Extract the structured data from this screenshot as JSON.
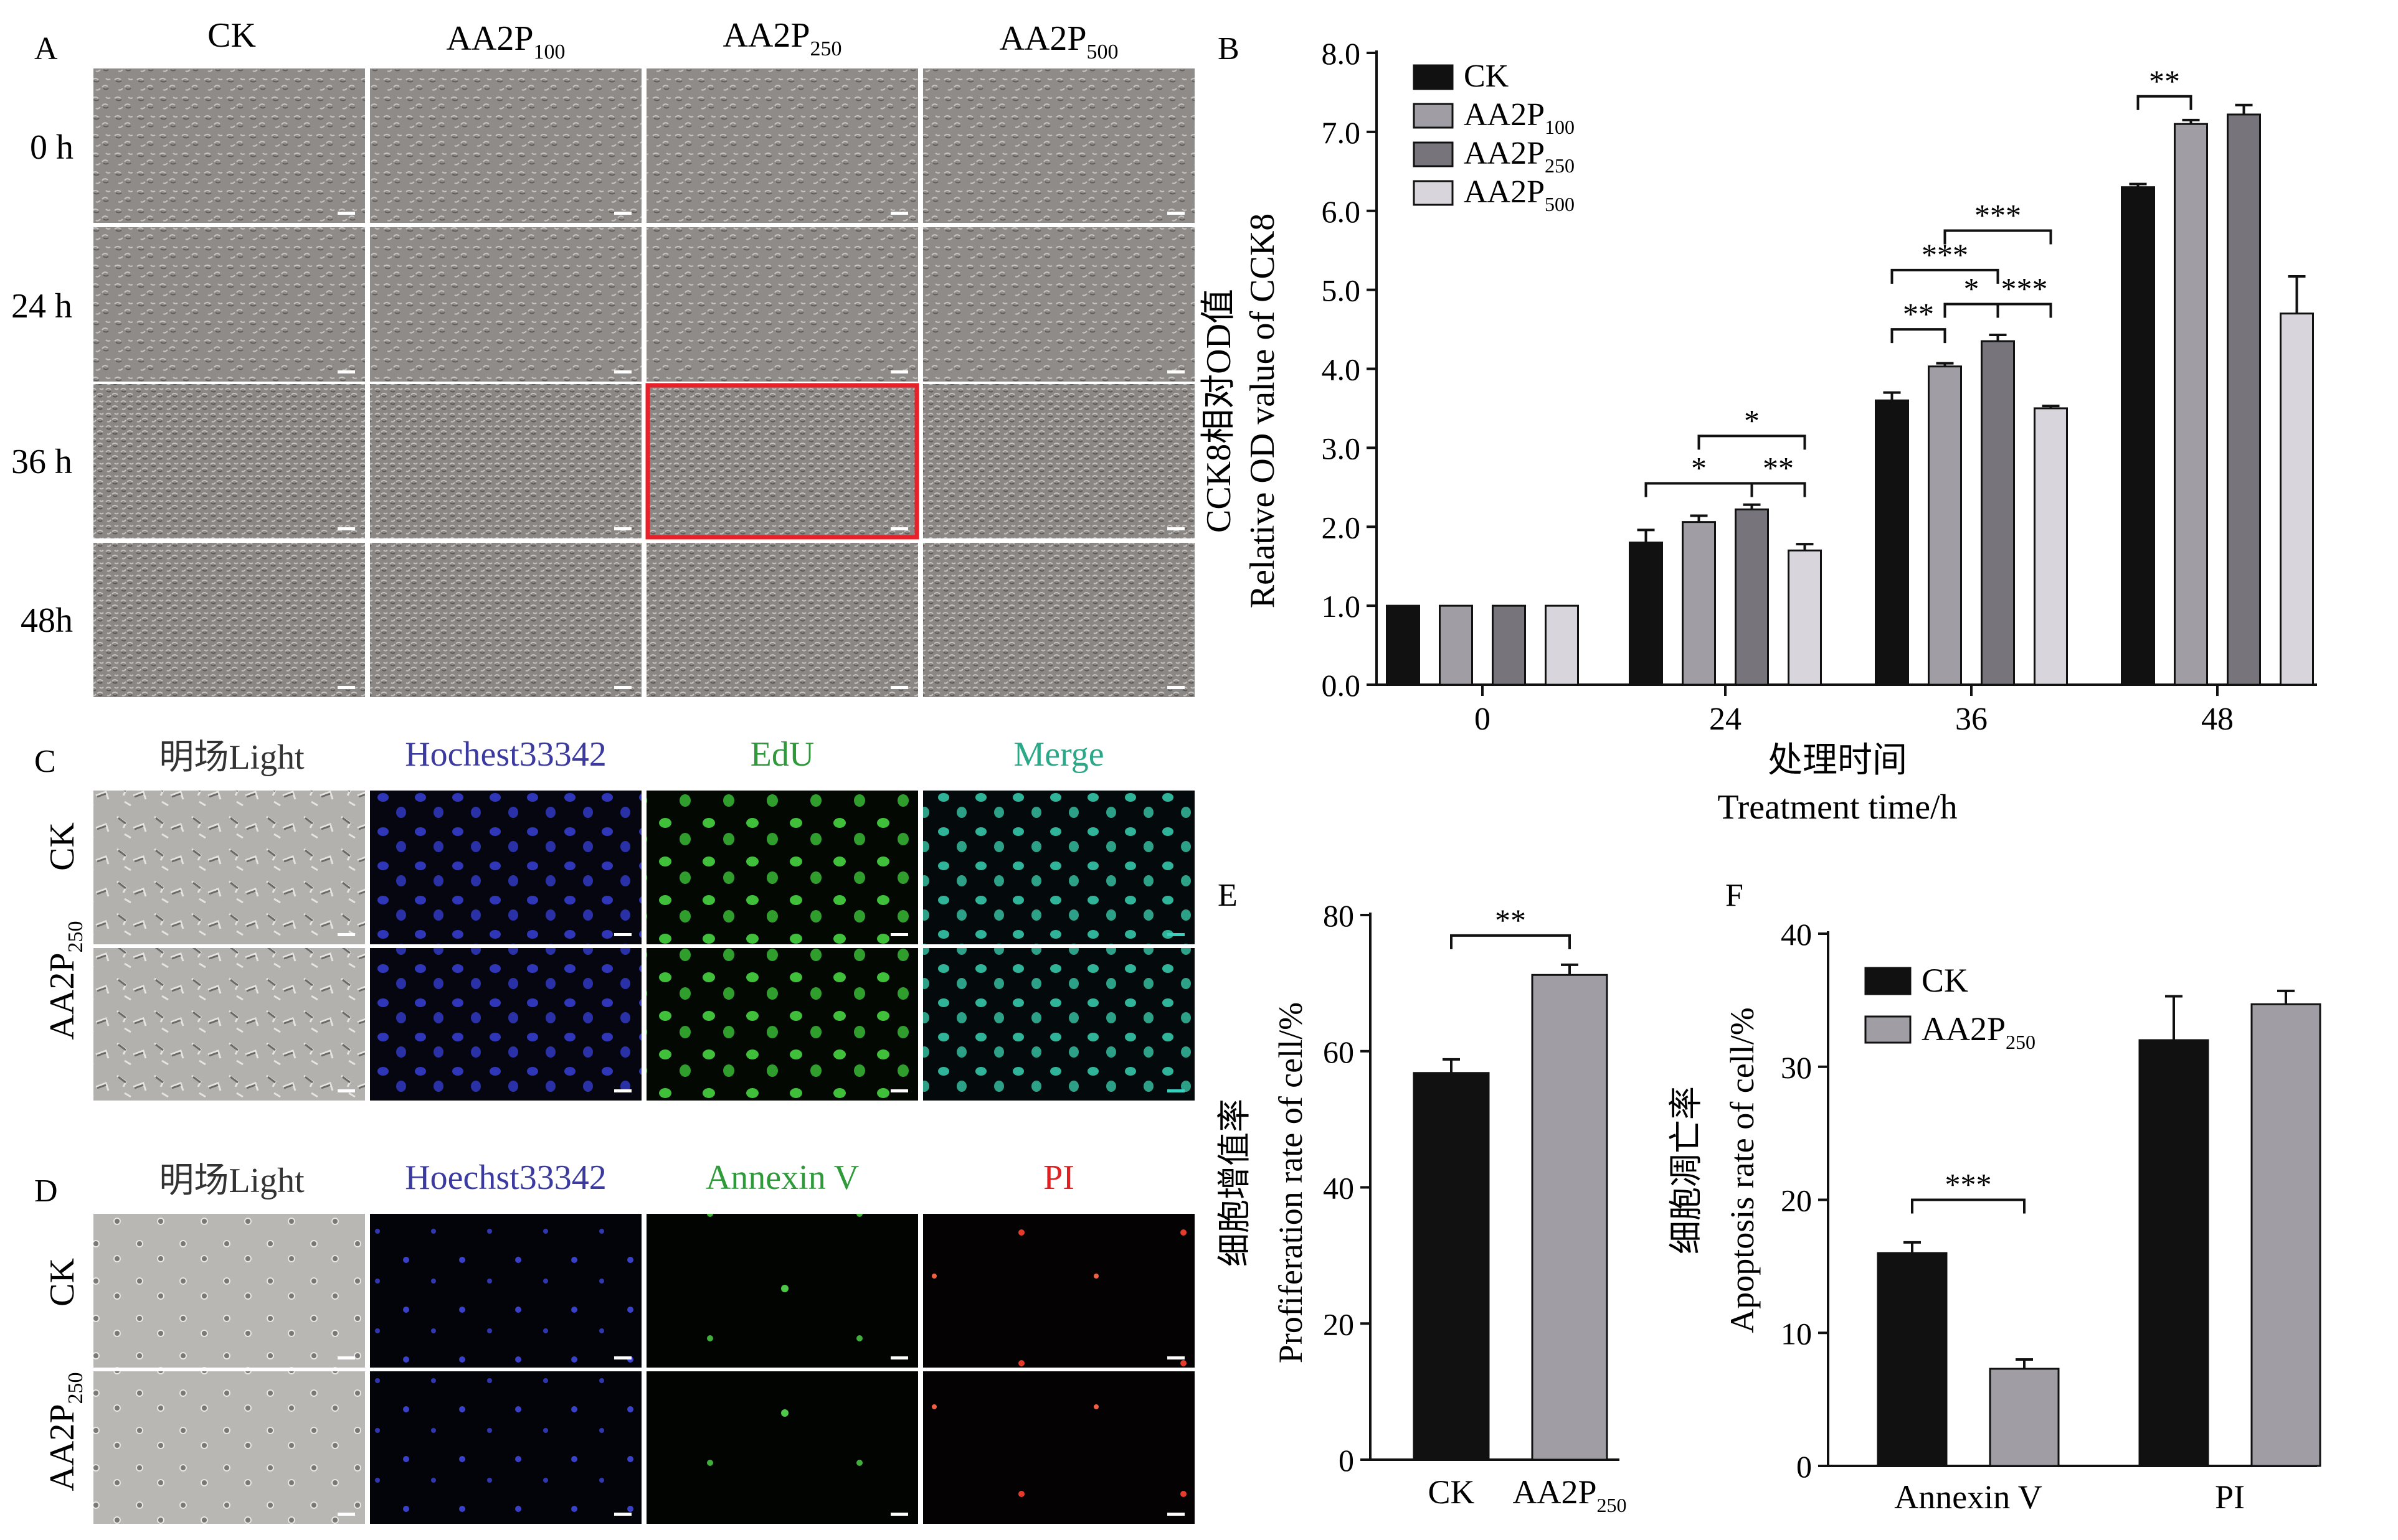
{
  "panel_a": {
    "letter": "A",
    "col_headers": [
      {
        "base": "CK",
        "sub": ""
      },
      {
        "base": "AA2P",
        "sub": "100"
      },
      {
        "base": "AA2P",
        "sub": "250"
      },
      {
        "base": "AA2P",
        "sub": "500"
      }
    ],
    "row_labels": [
      "0 h",
      "24 h",
      "36 h",
      "48h"
    ],
    "highlight": {
      "row": 2,
      "col": 2,
      "color": "#e8202a"
    }
  },
  "panel_c": {
    "letter": "C",
    "col_headers": [
      "明场Light",
      "Hochest33342",
      "EdU",
      "Merge"
    ],
    "col_colors": [
      "#333333",
      "#3a3aa0",
      "#2e9a3a",
      "#2aa888"
    ],
    "row_labels": [
      {
        "base": "CK",
        "sub": ""
      },
      {
        "base": "AA2P",
        "sub": "250"
      }
    ]
  },
  "panel_d": {
    "letter": "D",
    "col_headers": [
      "明场Light",
      "Hoechst33342",
      "Annexin V",
      "PI"
    ],
    "col_colors": [
      "#333333",
      "#3a3aa0",
      "#2e9a3a",
      "#e02020"
    ],
    "row_labels": [
      {
        "base": "CK",
        "sub": ""
      },
      {
        "base": "AA2P",
        "sub": "250"
      }
    ]
  },
  "chart_data": [
    {
      "panel": "B",
      "type": "bar",
      "ylabel_cn": "CCK8相对OD值",
      "ylabel_en": "Relative OD value of CCK8",
      "xlabel_cn": "处理时间",
      "xlabel_en": "Treatment time/h",
      "categories": [
        "0",
        "24",
        "36",
        "48"
      ],
      "ylim": [
        0,
        8
      ],
      "yticks": [
        "0.0",
        "1.0",
        "2.0",
        "3.0",
        "4.0",
        "5.0",
        "6.0",
        "7.0",
        "8.0"
      ],
      "legend_position": "top-left",
      "series": [
        {
          "name": "CK",
          "name_sub": "",
          "color": "#111111",
          "values": [
            1.0,
            1.8,
            3.6,
            6.3
          ],
          "errors": [
            0.0,
            0.16,
            0.1,
            0.04
          ]
        },
        {
          "name": "AA2P",
          "name_sub": "100",
          "color": "#a09ea4",
          "values": [
            1.0,
            2.06,
            4.03,
            7.1
          ],
          "errors": [
            0.0,
            0.08,
            0.04,
            0.05
          ]
        },
        {
          "name": "AA2P",
          "name_sub": "250",
          "color": "#77757b",
          "values": [
            1.0,
            2.22,
            4.35,
            7.22
          ],
          "errors": [
            0.0,
            0.06,
            0.08,
            0.12
          ]
        },
        {
          "name": "AA2P",
          "name_sub": "500",
          "color": "#d8d6dc",
          "values": [
            1.0,
            1.7,
            3.5,
            4.7
          ],
          "errors": [
            0.0,
            0.08,
            0.03,
            0.47
          ]
        }
      ],
      "significance": [
        {
          "group": 1,
          "from": 0,
          "to": 2,
          "label": "*",
          "y": 2.55
        },
        {
          "group": 1,
          "from": 2,
          "to": 3,
          "label": "**",
          "y": 2.55
        },
        {
          "group": 1,
          "from": 1,
          "to": 3,
          "label": "*",
          "y": 3.15
        },
        {
          "group": 2,
          "from": 0,
          "to": 1,
          "label": "**",
          "y": 4.5
        },
        {
          "group": 2,
          "from": 1,
          "to": 2,
          "label": "*",
          "y": 4.82
        },
        {
          "group": 2,
          "from": 2,
          "to": 3,
          "label": "***",
          "y": 4.82
        },
        {
          "group": 2,
          "from": 0,
          "to": 2,
          "label": "***",
          "y": 5.25
        },
        {
          "group": 2,
          "from": 1,
          "to": 3,
          "label": "***",
          "y": 5.75
        },
        {
          "group": 3,
          "from": 0,
          "to": 1,
          "label": "**",
          "y": 7.45
        }
      ]
    },
    {
      "panel": "E",
      "type": "bar",
      "ylabel_cn": "细胞增值率",
      "ylabel_en": "Proliferation rate of cell/%",
      "ylabel_display": "Profiferation rate of cell/%",
      "categories": [
        {
          "base": "CK",
          "sub": ""
        },
        {
          "base": "AA2P",
          "sub": "250"
        }
      ],
      "ylim": [
        0,
        80
      ],
      "yticks": [
        "0",
        "20",
        "40",
        "60",
        "80"
      ],
      "values": [
        56.8,
        71.2
      ],
      "errors": [
        2.0,
        1.5
      ],
      "colors": [
        "#111111",
        "#a09ea4"
      ],
      "significance": [
        {
          "from": 0,
          "to": 1,
          "label": "**",
          "y": 77
        }
      ]
    },
    {
      "panel": "F",
      "type": "bar",
      "ylabel_cn": "细胞凋亡率",
      "ylabel_en": "Apoptosis rate of cell/%",
      "categories": [
        "Annexin V",
        "PI"
      ],
      "ylim": [
        0,
        40
      ],
      "yticks": [
        "0",
        "10",
        "20",
        "30",
        "40"
      ],
      "legend_position": "top-left",
      "series": [
        {
          "name": "CK",
          "name_sub": "",
          "color": "#111111",
          "values": [
            16.0,
            32.0
          ],
          "errors": [
            0.8,
            3.3
          ]
        },
        {
          "name": "AA2P",
          "name_sub": "250",
          "color": "#a09ea4",
          "values": [
            7.3,
            34.7
          ],
          "errors": [
            0.7,
            1.0
          ]
        }
      ],
      "significance": [
        {
          "group": 0,
          "from": 0,
          "to": 1,
          "label": "***",
          "y": 20.0
        }
      ]
    }
  ],
  "panel_letters": {
    "b": "B",
    "e": "E",
    "f": "F"
  }
}
